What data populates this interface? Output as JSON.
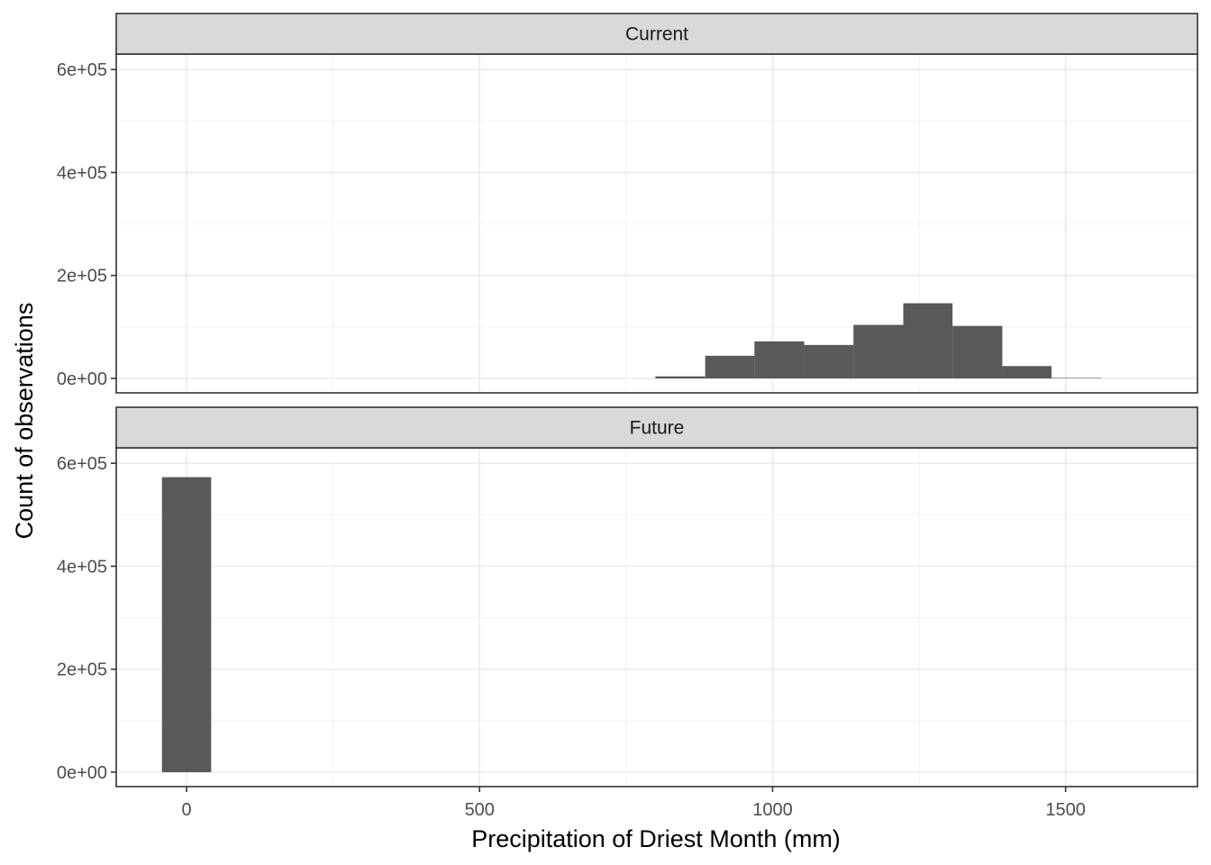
{
  "chart_data": {
    "type": "bar",
    "xlabel": "Precipitation of Driest Month (mm)",
    "ylabel": "Count of observations",
    "xlim": [
      -120,
      1725
    ],
    "ylim": [
      -28000,
      630000
    ],
    "x_ticks": [
      0,
      500,
      1000,
      1500
    ],
    "x_tick_labels": [
      "0",
      "500",
      "1000",
      "1500"
    ],
    "x_minor": [
      250,
      750,
      1250
    ],
    "y_ticks": [
      0,
      200000,
      400000,
      600000
    ],
    "y_tick_labels": [
      "0e+00",
      "2e+05",
      "4e+05",
      "6e+05"
    ],
    "y_minor": [
      100000,
      300000,
      500000
    ],
    "grid": true,
    "bar_color": "#595959",
    "strip_color": "#d9d9d9",
    "panels": [
      {
        "name": "Current",
        "bins": [
          {
            "x0": 800,
            "x1": 885,
            "count": 4000
          },
          {
            "x0": 885,
            "x1": 969,
            "count": 44000
          },
          {
            "x0": 969,
            "x1": 1054,
            "count": 72000
          },
          {
            "x0": 1054,
            "x1": 1138,
            "count": 65000
          },
          {
            "x0": 1138,
            "x1": 1223,
            "count": 104000
          },
          {
            "x0": 1223,
            "x1": 1307,
            "count": 146000
          },
          {
            "x0": 1307,
            "x1": 1392,
            "count": 102000
          },
          {
            "x0": 1392,
            "x1": 1476,
            "count": 24000
          },
          {
            "x0": 1476,
            "x1": 1561,
            "count": 1000
          }
        ]
      },
      {
        "name": "Future",
        "bins": [
          {
            "x0": -42,
            "x1": 42,
            "count": 573000
          }
        ]
      }
    ]
  }
}
